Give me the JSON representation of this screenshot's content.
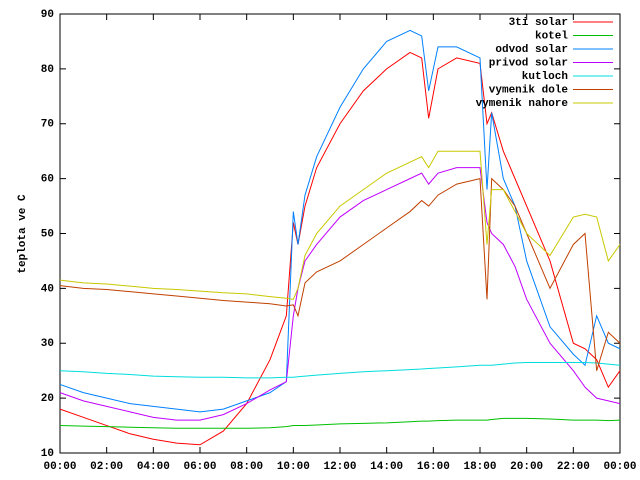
{
  "chart_data": {
    "type": "line",
    "ylabel": "teplota ve C",
    "x": [
      0,
      1,
      2,
      3,
      4,
      5,
      6,
      7,
      8,
      9,
      9.7,
      10,
      10.2,
      10.5,
      11,
      12,
      13,
      14,
      15,
      15.5,
      15.8,
      16.2,
      17,
      18,
      18.3,
      18.5,
      19,
      19.5,
      20,
      21,
      22,
      22.5,
      23,
      23.5,
      24
    ],
    "series": [
      {
        "name": "3ti solar",
        "color": "#ff0000",
        "values": [
          18,
          16.5,
          15,
          13.5,
          12.5,
          11.8,
          11.5,
          14,
          19,
          27,
          35,
          52,
          48,
          55,
          62,
          70,
          76,
          80,
          83,
          82,
          71,
          80,
          82,
          81,
          70,
          72,
          65,
          60,
          55,
          45,
          30,
          29,
          27,
          22,
          25
        ]
      },
      {
        "name": "kotel",
        "color": "#00c000",
        "values": [
          15,
          14.9,
          14.8,
          14.7,
          14.6,
          14.5,
          14.5,
          14.5,
          14.5,
          14.6,
          14.8,
          15,
          15,
          15,
          15.1,
          15.3,
          15.4,
          15.5,
          15.7,
          15.8,
          15.8,
          15.9,
          16,
          16,
          16,
          16.1,
          16.3,
          16.3,
          16.3,
          16.2,
          16,
          16,
          16,
          15.9,
          16
        ]
      },
      {
        "name": "odvod solar",
        "color": "#0080ff",
        "values": [
          22.5,
          21,
          20,
          19,
          18.5,
          18,
          17.5,
          18,
          19.5,
          21,
          23,
          54,
          48,
          57,
          64,
          73,
          80,
          85,
          87,
          86,
          76,
          84,
          84,
          82,
          58,
          72,
          60,
          55,
          45,
          33,
          28,
          26,
          35,
          30,
          29
        ]
      },
      {
        "name": "privod solar",
        "color": "#c000ff",
        "values": [
          21,
          19.5,
          18.5,
          17.5,
          16.5,
          16,
          16,
          17,
          19,
          21.5,
          23,
          35,
          40,
          45,
          48,
          53,
          56,
          58,
          60,
          61,
          59,
          61,
          62,
          62,
          52,
          50,
          48,
          44,
          38,
          30,
          25,
          22,
          20,
          19.5,
          19
        ]
      },
      {
        "name": "kutloch",
        "color": "#00dddd",
        "values": [
          25,
          24.8,
          24.5,
          24.3,
          24,
          23.9,
          23.8,
          23.8,
          23.7,
          23.7,
          23.8,
          23.8,
          23.9,
          24,
          24.2,
          24.5,
          24.8,
          25,
          25.2,
          25.3,
          25.4,
          25.5,
          25.7,
          26,
          26,
          26,
          26.2,
          26.4,
          26.5,
          26.5,
          26.5,
          26.5,
          26.4,
          26.2,
          26
        ]
      },
      {
        "name": "vymenik dole",
        "color": "#c04000",
        "values": [
          40.5,
          40,
          39.8,
          39.4,
          39,
          38.6,
          38.2,
          37.8,
          37.5,
          37.2,
          36.8,
          37,
          35,
          41,
          43,
          45,
          48,
          51,
          54,
          56,
          55,
          57,
          59,
          60,
          38,
          60,
          58,
          55,
          50,
          40,
          48,
          50,
          25,
          32,
          30
        ]
      },
      {
        "name": "vymenik nahore",
        "color": "#c8c800",
        "values": [
          41.5,
          41,
          40.8,
          40.4,
          40,
          39.8,
          39.5,
          39.2,
          39,
          38.5,
          38.2,
          38,
          40,
          46,
          50,
          55,
          58,
          61,
          63,
          64,
          62,
          65,
          65,
          65,
          48,
          58,
          58,
          54,
          50,
          46,
          53,
          53.5,
          53,
          45,
          48
        ]
      }
    ],
    "xlim": [
      0,
      24
    ],
    "xticks": [
      {
        "value": 0,
        "label": "00:00"
      },
      {
        "value": 2,
        "label": "02:00"
      },
      {
        "value": 4,
        "label": "04:00"
      },
      {
        "value": 6,
        "label": "06:00"
      },
      {
        "value": 8,
        "label": "08:00"
      },
      {
        "value": 10,
        "label": "10:00"
      },
      {
        "value": 12,
        "label": "12:00"
      },
      {
        "value": 14,
        "label": "14:00"
      },
      {
        "value": 16,
        "label": "16:00"
      },
      {
        "value": 18,
        "label": "18:00"
      },
      {
        "value": 20,
        "label": "20:00"
      },
      {
        "value": 22,
        "label": "22:00"
      },
      {
        "value": 24,
        "label": "00:00"
      }
    ],
    "ylim": [
      10,
      90
    ],
    "yticks": [
      10,
      20,
      30,
      40,
      50,
      60,
      70,
      80,
      90
    ],
    "legend": "top-right",
    "grid": false
  }
}
